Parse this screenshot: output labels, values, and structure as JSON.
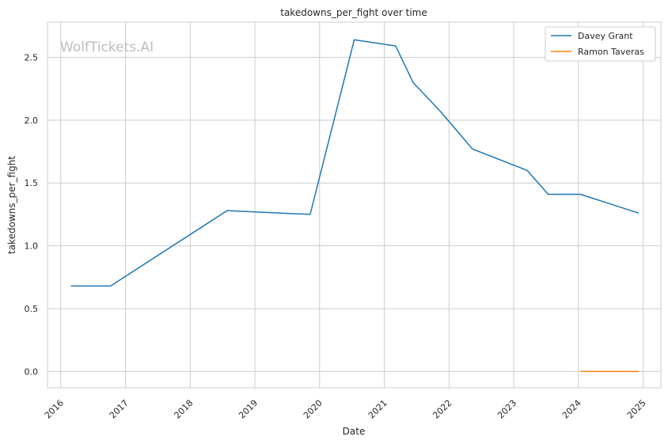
{
  "chart_data": {
    "type": "line",
    "title": "takedowns_per_fight over time",
    "xlabel": "Date",
    "ylabel": "takedowns_per_fight",
    "watermark": "WolfTickets.AI",
    "x_ticks": [
      "2016",
      "2017",
      "2018",
      "2019",
      "2020",
      "2021",
      "2022",
      "2023",
      "2024",
      "2025"
    ],
    "y_ticks": [
      "0.0",
      "0.5",
      "1.0",
      "1.5",
      "2.0",
      "2.5"
    ],
    "xlim": [
      "2015-10-18",
      "2025-04-11"
    ],
    "ylim": [
      -0.13,
      2.78
    ],
    "grid": true,
    "legend_position": "top-right",
    "series": [
      {
        "name": "Davey Grant",
        "color": "#1f77b4",
        "points": [
          {
            "x": "2016-02-27",
            "y": 0.68
          },
          {
            "x": "2016-10-08",
            "y": 0.68
          },
          {
            "x": "2018-07-28",
            "y": 1.28
          },
          {
            "x": "2019-11-09",
            "y": 1.25
          },
          {
            "x": "2020-07-15",
            "y": 2.64
          },
          {
            "x": "2021-03-06",
            "y": 2.59
          },
          {
            "x": "2021-06-12",
            "y": 2.3
          },
          {
            "x": "2021-11-13",
            "y": 2.07
          },
          {
            "x": "2022-05-14",
            "y": 1.77
          },
          {
            "x": "2023-03-18",
            "y": 1.6
          },
          {
            "x": "2023-07-15",
            "y": 1.41
          },
          {
            "x": "2024-01-13",
            "y": 1.41
          },
          {
            "x": "2024-12-07",
            "y": 1.26
          }
        ]
      },
      {
        "name": "Ramon Taveras",
        "color": "#ff7f0e",
        "points": [
          {
            "x": "2024-01-13",
            "y": 0.0
          },
          {
            "x": "2024-12-07",
            "y": 0.0
          }
        ]
      }
    ]
  }
}
